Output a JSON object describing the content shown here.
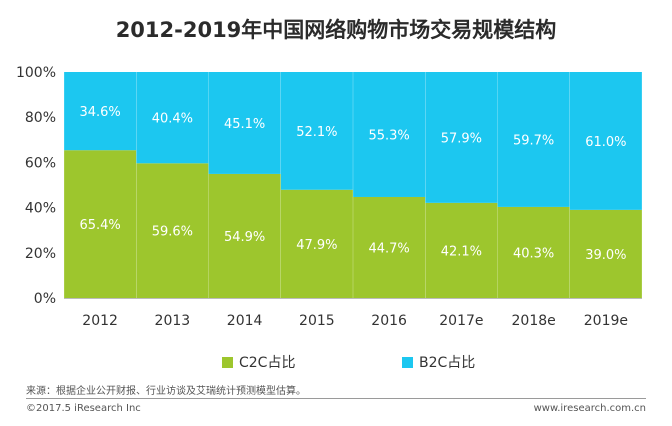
{
  "chart_data": {
    "type": "bar",
    "stacked": true,
    "title": "2012-2019年中国网络购物市场交易规模结构",
    "categories": [
      "2012",
      "2013",
      "2014",
      "2015",
      "2016",
      "2017e",
      "2018e",
      "2019e"
    ],
    "series": [
      {
        "name": "C2C占比",
        "color": "#9dc62d",
        "values": [
          65.4,
          59.6,
          54.9,
          47.9,
          44.7,
          42.1,
          40.3,
          39.0
        ]
      },
      {
        "name": "B2C占比",
        "color": "#1cc7f0",
        "values": [
          34.6,
          40.4,
          45.1,
          52.1,
          55.3,
          57.9,
          59.7,
          61.0
        ]
      }
    ],
    "ylim": [
      0,
      100
    ],
    "yticks": [
      "0%",
      "20%",
      "40%",
      "60%",
      "80%",
      "100%"
    ],
    "value_suffix": "%",
    "legend_position": "bottom",
    "grid": false
  },
  "footer": {
    "source": "来源：根据企业公开财报、行业访谈及艾瑞统计预测模型估算。",
    "copyright": "©2017.5 iResearch Inc",
    "website": "www.iresearch.com.cn"
  }
}
